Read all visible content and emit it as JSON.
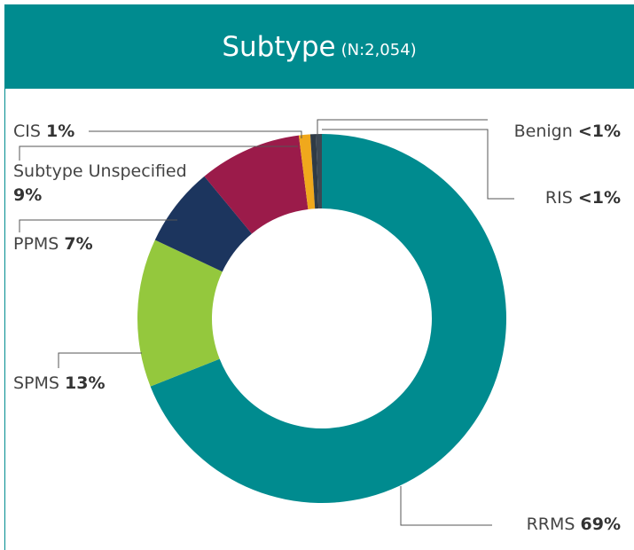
{
  "chart_data": {
    "type": "pie",
    "title": "Subtype",
    "subtitle": "(N:2,054)",
    "categories": [
      "RRMS",
      "SPMS",
      "PPMS",
      "Subtype Unspecified",
      "CIS",
      "RIS",
      "Benign"
    ],
    "values": [
      69,
      13,
      7,
      9,
      1,
      0.5,
      0.5
    ],
    "value_labels": [
      "69%",
      "13%",
      "7%",
      "9%",
      "1%",
      "<1%",
      "<1%"
    ],
    "colors": [
      "#008b8f",
      "#94c83d",
      "#1c355e",
      "#9b1b4a",
      "#f0a81c",
      "#2f3b46",
      "#3c4853"
    ]
  }
}
